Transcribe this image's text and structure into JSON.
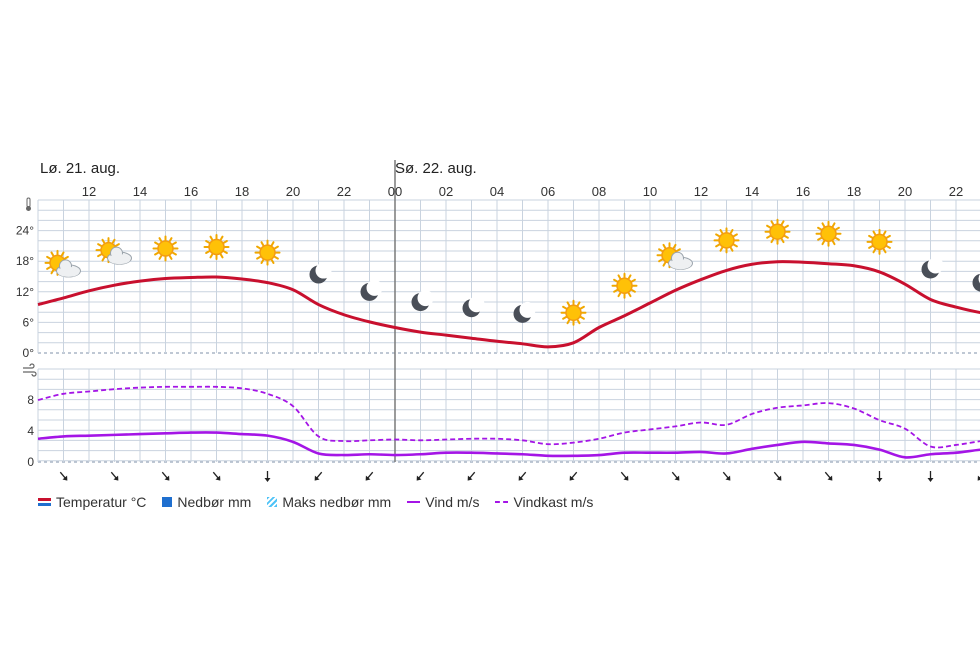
{
  "days": [
    {
      "label": "Lø. 21. aug.",
      "hour": 10
    },
    {
      "label": "Sø. 22. aug.",
      "hour": 24
    }
  ],
  "hour_ticks": [
    "12",
    "14",
    "16",
    "18",
    "20",
    "22",
    "00",
    "02",
    "04",
    "06",
    "08",
    "10",
    "12",
    "14",
    "16",
    "18",
    "20",
    "22"
  ],
  "colors": {
    "temperature": "#c8102e",
    "precipitation": "#1f6fcf",
    "max_precipitation": "#4fc3f7",
    "wind": "#a415e6",
    "gust": "#a415e6",
    "grid": "#c9d3df",
    "day_line": "#7a7a7a"
  },
  "icons": [
    {
      "h": 11,
      "icon": "partly-cloudy-day-icon"
    },
    {
      "h": 13,
      "icon": "partly-cloudy-day-icon"
    },
    {
      "h": 15,
      "icon": "sun-icon"
    },
    {
      "h": 17,
      "icon": "sun-icon"
    },
    {
      "h": 19,
      "icon": "sun-icon"
    },
    {
      "h": 21,
      "icon": "moon-icon"
    },
    {
      "h": 23,
      "icon": "moon-icon"
    },
    {
      "h": 25,
      "icon": "moon-icon"
    },
    {
      "h": 27,
      "icon": "moon-icon"
    },
    {
      "h": 29,
      "icon": "moon-icon"
    },
    {
      "h": 31,
      "icon": "sun-icon"
    },
    {
      "h": 33,
      "icon": "sun-icon"
    },
    {
      "h": 35,
      "icon": "partly-cloudy-day-icon"
    },
    {
      "h": 37,
      "icon": "sun-icon"
    },
    {
      "h": 39,
      "icon": "sun-icon"
    },
    {
      "h": 41,
      "icon": "sun-icon"
    },
    {
      "h": 43,
      "icon": "sun-icon"
    },
    {
      "h": 45,
      "icon": "moon-icon"
    },
    {
      "h": 47,
      "icon": "moon-icon"
    }
  ],
  "wind_arrows": [
    {
      "h": 11,
      "dir": "southeast"
    },
    {
      "h": 13,
      "dir": "southeast"
    },
    {
      "h": 15,
      "dir": "southeast"
    },
    {
      "h": 17,
      "dir": "southeast"
    },
    {
      "h": 19,
      "dir": "south"
    },
    {
      "h": 21,
      "dir": "southwest"
    },
    {
      "h": 23,
      "dir": "southwest"
    },
    {
      "h": 25,
      "dir": "southwest"
    },
    {
      "h": 27,
      "dir": "southwest"
    },
    {
      "h": 29,
      "dir": "southwest"
    },
    {
      "h": 31,
      "dir": "southwest"
    },
    {
      "h": 33,
      "dir": "southeast"
    },
    {
      "h": 35,
      "dir": "southeast"
    },
    {
      "h": 37,
      "dir": "southeast"
    },
    {
      "h": 39,
      "dir": "southeast"
    },
    {
      "h": 41,
      "dir": "southeast"
    },
    {
      "h": 43,
      "dir": "south"
    },
    {
      "h": 45,
      "dir": "south"
    },
    {
      "h": 47,
      "dir": "southwest"
    }
  ],
  "chart_data": [
    {
      "type": "line",
      "ylabel": "thermometer-icon",
      "yticks": [
        "0°",
        "6°",
        "12°",
        "18°",
        "24°"
      ],
      "ylim": [
        0,
        30
      ],
      "xlim": [
        10,
        48
      ],
      "grid": true,
      "series": [
        {
          "name": "Temperatur °C",
          "x": [
            10,
            11,
            12,
            13,
            14,
            15,
            16,
            17,
            18,
            19,
            20,
            21,
            22,
            23,
            24,
            25,
            26,
            27,
            28,
            29,
            30,
            31,
            32,
            33,
            34,
            35,
            36,
            37,
            38,
            39,
            40,
            41,
            42,
            43,
            44,
            45,
            46,
            47,
            48
          ],
          "values": [
            9.5,
            10.8,
            12.2,
            13.3,
            14.1,
            14.6,
            14.8,
            14.9,
            14.5,
            13.8,
            12.4,
            9.5,
            7.5,
            6.1,
            5.0,
            4.1,
            3.5,
            2.9,
            2.3,
            1.8,
            1.2,
            2.0,
            5.0,
            7.3,
            9.8,
            12.3,
            14.4,
            16.2,
            17.4,
            17.9,
            17.8,
            17.5,
            17.1,
            15.9,
            13.5,
            10.5,
            9.0,
            7.9,
            7.5
          ]
        }
      ]
    },
    {
      "type": "line",
      "ylabel": "wind-icon",
      "yticks": [
        "0",
        "4",
        "8"
      ],
      "ylim": [
        0,
        12
      ],
      "xlim": [
        10,
        48
      ],
      "grid": true,
      "series": [
        {
          "name": "Vind m/s",
          "x": [
            10,
            11,
            12,
            13,
            14,
            15,
            16,
            17,
            18,
            19,
            20,
            21,
            22,
            23,
            24,
            25,
            26,
            27,
            28,
            29,
            30,
            31,
            32,
            33,
            34,
            35,
            36,
            37,
            38,
            39,
            40,
            41,
            42,
            43,
            44,
            45,
            46,
            47,
            48
          ],
          "values": [
            3.0,
            3.3,
            3.4,
            3.5,
            3.6,
            3.7,
            3.8,
            3.8,
            3.6,
            3.4,
            2.6,
            1.1,
            0.9,
            1.0,
            0.9,
            1.0,
            1.2,
            1.2,
            1.1,
            1.0,
            0.8,
            0.8,
            0.9,
            1.2,
            1.2,
            1.2,
            1.3,
            1.1,
            1.7,
            2.2,
            2.6,
            2.4,
            2.2,
            1.6,
            0.6,
            1.0,
            1.2,
            1.6,
            1.8
          ]
        },
        {
          "name": "Vindkast m/s",
          "x": [
            10,
            11,
            12,
            13,
            14,
            15,
            16,
            17,
            18,
            19,
            20,
            21,
            22,
            23,
            24,
            25,
            26,
            27,
            28,
            29,
            30,
            31,
            32,
            33,
            34,
            35,
            36,
            37,
            38,
            39,
            40,
            41,
            42,
            43,
            44,
            45,
            46,
            47,
            48
          ],
          "values": [
            8.0,
            8.8,
            9.1,
            9.4,
            9.6,
            9.7,
            9.7,
            9.7,
            9.5,
            8.8,
            7.2,
            3.3,
            2.7,
            2.8,
            2.9,
            2.8,
            2.9,
            3.0,
            3.0,
            2.8,
            2.3,
            2.5,
            3.0,
            3.8,
            4.2,
            4.6,
            5.1,
            4.8,
            6.2,
            7.0,
            7.3,
            7.6,
            6.9,
            5.4,
            4.3,
            2.0,
            2.2,
            2.7,
            3.0
          ]
        }
      ]
    }
  ],
  "legend": [
    {
      "label": "Temperatur °C",
      "swatch": "temperature-swatch"
    },
    {
      "label": "Nedbør mm",
      "swatch": "precipitation-swatch"
    },
    {
      "label": "Maks nedbør mm",
      "swatch": "max-precipitation-swatch"
    },
    {
      "label": "Vind m/s",
      "swatch": "wind-swatch"
    },
    {
      "label": "Vindkast m/s",
      "swatch": "gust-swatch"
    }
  ]
}
